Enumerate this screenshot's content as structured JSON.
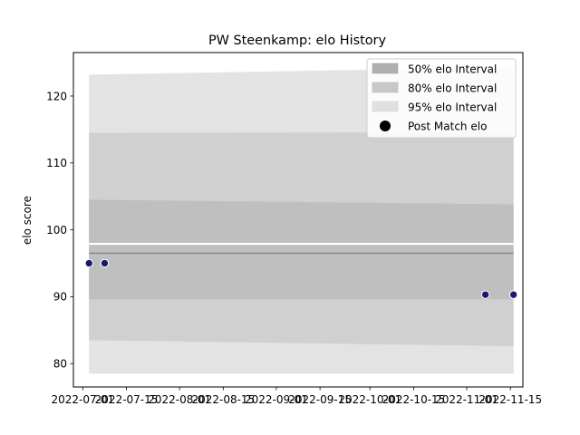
{
  "chart_data": {
    "type": "area",
    "title": "PW Steenkamp: elo History",
    "xlabel": "",
    "ylabel": "elo score",
    "x_ticks": [
      "2022-07-01",
      "2022-07-15",
      "2022-08-01",
      "2022-08-15",
      "2022-09-01",
      "2022-09-15",
      "2022-10-01",
      "2022-10-15",
      "2022-11-01",
      "2022-11-15"
    ],
    "x_tick_dates": [
      "2022-07-01",
      "2022-07-15",
      "2022-08-01",
      "2022-08-15",
      "2022-09-01",
      "2022-09-15",
      "2022-10-01",
      "2022-10-15",
      "2022-11-01",
      "2022-11-15"
    ],
    "xlim": [
      "2022-06-28",
      "2022-11-19"
    ],
    "ylim": [
      76.5,
      126.5
    ],
    "y_ticks": [
      80,
      90,
      100,
      110,
      120
    ],
    "grid": false,
    "legend_position": "top-right",
    "legend": [
      "50% elo Interval",
      "80% elo Interval",
      "95% elo Interval",
      "Post Match elo"
    ],
    "x": [
      "2022-07-03",
      "2022-07-08",
      "2022-11-07",
      "2022-11-16"
    ],
    "bands": [
      {
        "name": "95% elo Interval",
        "color": "#e3e3e3",
        "x": [
          "2022-07-03",
          "2022-11-16"
        ],
        "lower": [
          78.5,
          78.5
        ],
        "upper": [
          123.2,
          124.3
        ]
      },
      {
        "name": "80% elo Interval",
        "color": "#d0d0d0",
        "x": [
          "2022-07-03",
          "2022-11-16"
        ],
        "lower": [
          83.5,
          82.6
        ],
        "upper": [
          114.5,
          114.6
        ]
      },
      {
        "name": "50% elo Interval",
        "color": "#bfbfbf",
        "x": [
          "2022-07-03",
          "2022-11-16"
        ],
        "lower": [
          89.6,
          89.6
        ],
        "upper": [
          104.5,
          103.8
        ]
      }
    ],
    "white_line": {
      "x": [
        "2022-07-03",
        "2022-11-16"
      ],
      "y": [
        97.9,
        97.9
      ]
    },
    "mean_line": {
      "x": [
        "2022-07-03",
        "2022-11-16"
      ],
      "y": [
        96.5,
        96.5
      ]
    },
    "series": [
      {
        "name": "Post Match elo",
        "color": "#191970",
        "x": [
          "2022-07-03",
          "2022-07-08",
          "2022-11-07",
          "2022-11-16"
        ],
        "values": [
          95.0,
          95.0,
          90.3,
          90.3
        ]
      }
    ]
  }
}
